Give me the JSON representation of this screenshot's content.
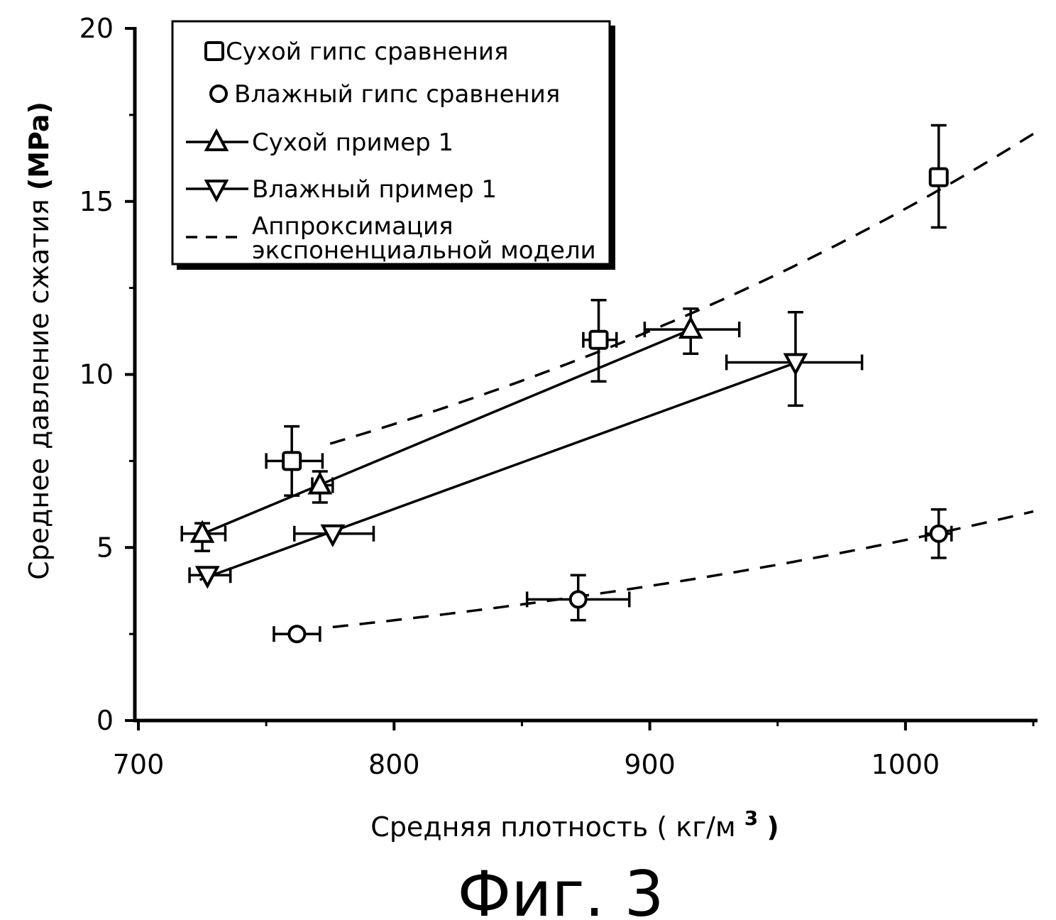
{
  "chart_data": {
    "type": "scatter",
    "title": "",
    "caption": "Фиг. 3",
    "xlabel": "Средняя плотность (",
    "xlabel_unit": "кг/м",
    "xlabel_sup": "3",
    "xlabel_close": ")",
    "ylabel": "Среднее давление сжатия",
    "ylabel_unit": "(MPa)",
    "xlim": [
      700,
      1050
    ],
    "ylim": [
      0,
      20
    ],
    "xticks": [
      "700",
      "800",
      "900",
      "1000"
    ],
    "yticks": [
      "0",
      "5",
      "10",
      "15",
      "20"
    ],
    "grid": false,
    "legend_placement": "top-left",
    "series": [
      {
        "name": "Сухой гипс сравнения",
        "marker": "square",
        "line": "none",
        "points": [
          {
            "x": 760,
            "y": 7.5,
            "xerr": [
              750,
              772
            ],
            "yerr": [
              6.5,
              8.5
            ]
          },
          {
            "x": 880,
            "y": 11.0,
            "xerr": [
              874,
              887
            ],
            "yerr": [
              9.8,
              12.15
            ]
          },
          {
            "x": 1013,
            "y": 15.7,
            "xerr": [
              1013,
              1013
            ],
            "yerr": [
              14.25,
              17.2
            ]
          }
        ]
      },
      {
        "name": "Влажный гипс сравнения",
        "marker": "circle",
        "line": "none",
        "points": [
          {
            "x": 762,
            "y": 2.5,
            "xerr": [
              753,
              771
            ],
            "yerr": [
              2.5,
              2.5
            ]
          },
          {
            "x": 872,
            "y": 3.5,
            "xerr": [
              852,
              892
            ],
            "yerr": [
              2.9,
              4.2
            ]
          },
          {
            "x": 1013,
            "y": 5.4,
            "xerr": [
              1008,
              1018
            ],
            "yerr": [
              4.7,
              6.1
            ]
          }
        ]
      },
      {
        "name": "Сухой пример 1",
        "marker": "triangle-up",
        "line": "solid",
        "points": [
          {
            "x": 725,
            "y": 5.4,
            "xerr": [
              717,
              734
            ],
            "yerr": [
              4.9,
              5.7
            ]
          },
          {
            "x": 771,
            "y": 6.8,
            "xerr": [
              768,
              776
            ],
            "yerr": [
              6.3,
              7.2
            ]
          },
          {
            "x": 916,
            "y": 11.3,
            "xerr": [
              898,
              935
            ],
            "yerr": [
              10.6,
              11.9
            ]
          }
        ]
      },
      {
        "name": "Влажный пример 1",
        "marker": "triangle-down",
        "line": "solid",
        "points": [
          {
            "x": 727,
            "y": 4.2,
            "xerr": [
              720,
              736
            ],
            "yerr": [
              4.2,
              4.2
            ]
          },
          {
            "x": 776,
            "y": 5.4,
            "xerr": [
              761,
              792
            ],
            "yerr": [
              5.4,
              5.4
            ]
          },
          {
            "x": 957,
            "y": 10.35,
            "xerr": [
              930,
              983
            ],
            "yerr": [
              9.1,
              11.8
            ]
          }
        ]
      }
    ],
    "fits": [
      {
        "name": "Аппроксимация экспоненциальной модели",
        "of": "Сухой гипс сравнения",
        "style": "dashed",
        "x_range": [
          775,
          1051
        ],
        "a_at_775": 8.0,
        "y_at_1051": 17.0
      },
      {
        "of": "Влажный гипс сравнения",
        "style": "dashed",
        "x_range": [
          776,
          1051
        ],
        "a_at_776": 2.7,
        "y_at_1051": 6.06
      }
    ],
    "legend": [
      {
        "label": "Сухой гипс сравнения",
        "marker": "square"
      },
      {
        "label": "Влажный гипс сравнения",
        "marker": "circle"
      },
      {
        "label": "Сухой пример 1",
        "marker": "triangle-up"
      },
      {
        "label": "Влажный пример 1",
        "marker": "triangle-down"
      },
      {
        "label": "Аппроксимация",
        "label2": "экспоненциальной модели",
        "marker": "dashed-line"
      }
    ]
  }
}
